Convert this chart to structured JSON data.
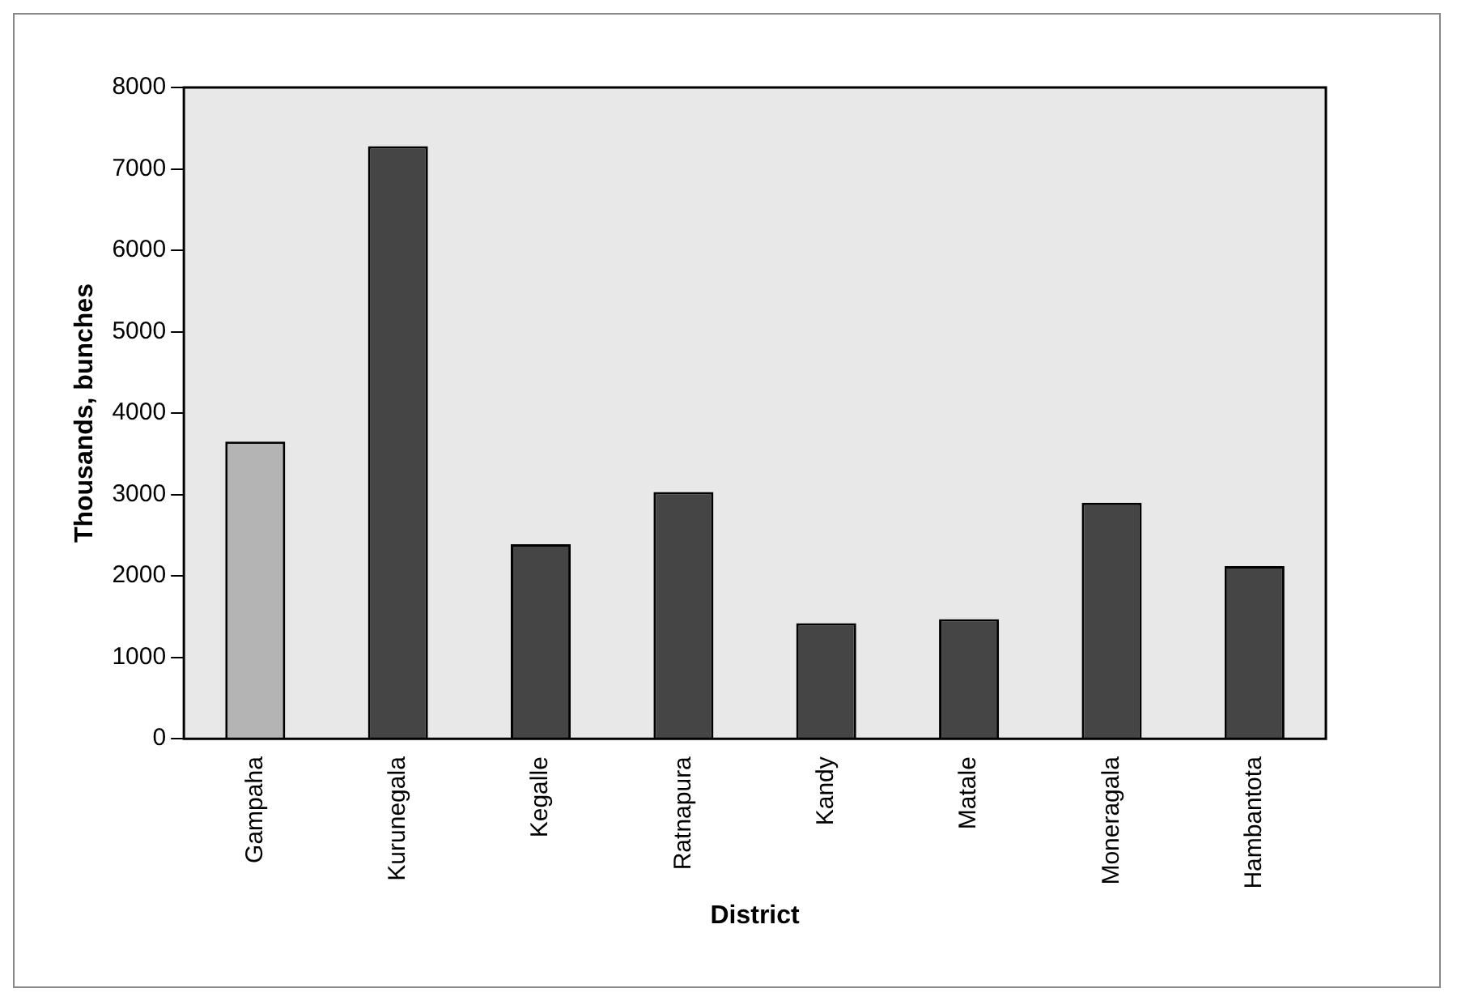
{
  "chart_data": {
    "type": "bar",
    "xlabel": "District",
    "ylabel": "Thousands, bunches",
    "categories": [
      "Gampaha",
      "Kurunegala",
      "Kegalle",
      "Ratnapura",
      "Kandy",
      "Matale",
      "Moneragala",
      "Hambantota"
    ],
    "values": [
      3650,
      7280,
      2390,
      3030,
      1420,
      1470,
      2900,
      2120
    ],
    "colors": [
      "#b4b4b4",
      "#454545",
      "#454545",
      "#454545",
      "#454545",
      "#454545",
      "#454545",
      "#454545"
    ],
    "ylim": [
      0,
      8000
    ],
    "yticks": [
      0,
      1000,
      2000,
      3000,
      4000,
      5000,
      6000,
      7000,
      8000
    ],
    "grid": false,
    "legend": false
  }
}
